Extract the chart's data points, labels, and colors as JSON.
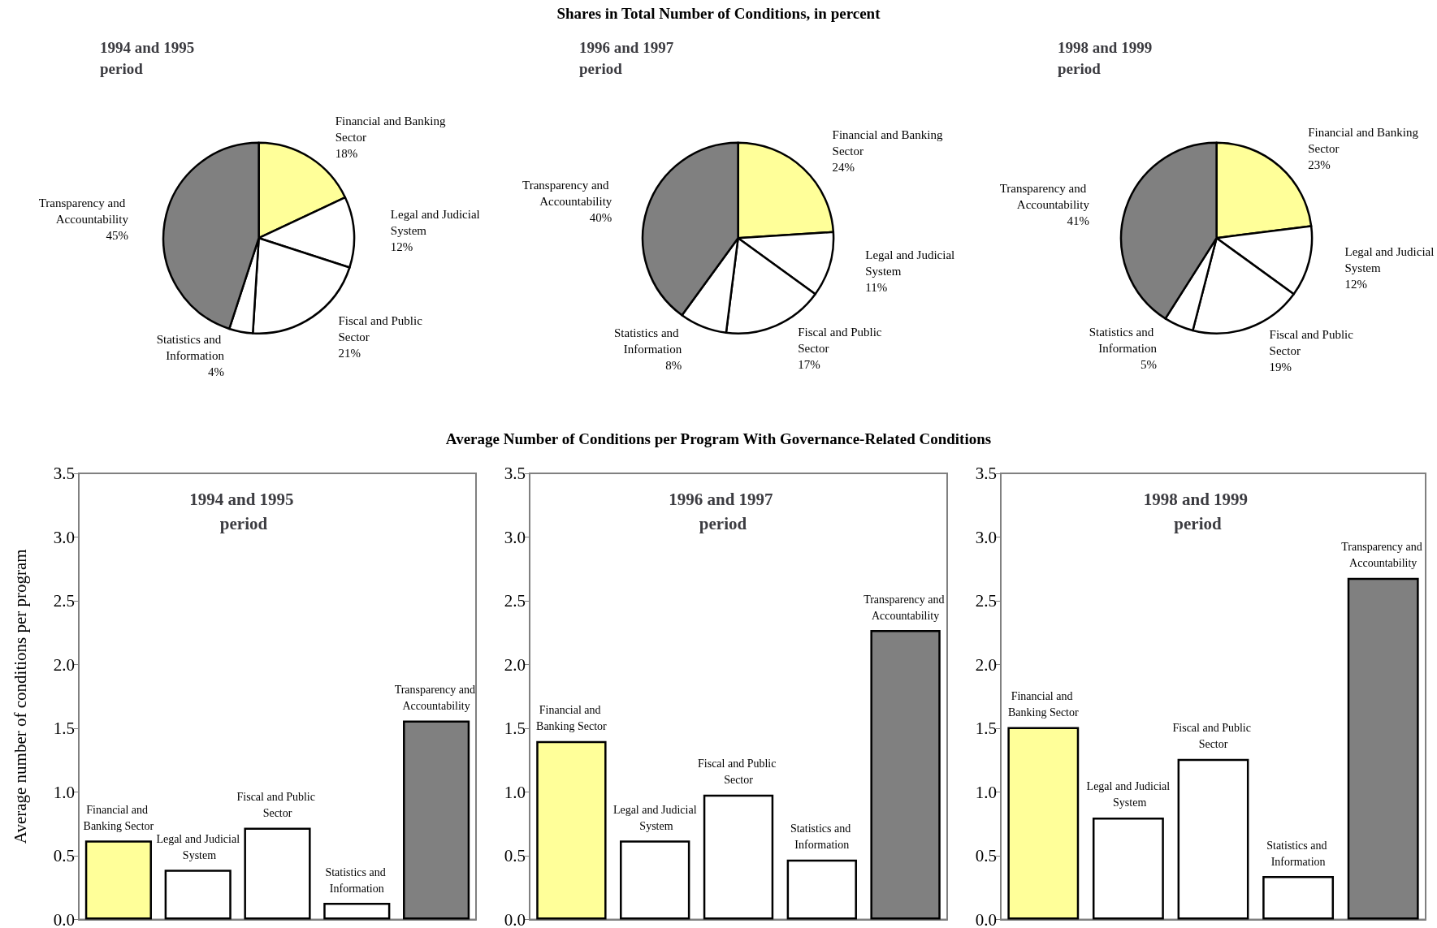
{
  "chart_data": [
    {
      "type": "pie",
      "title": "1994 and 1995 period",
      "annotations": [
        "Shares in Total Number of Conditions, in percent"
      ],
      "categories": [
        "Financial and Banking Sector",
        "Legal and Judicial System",
        "Fiscal and Public Sector",
        "Statistics and Information",
        "Transparency and Accountability"
      ],
      "values": [
        18,
        12,
        21,
        4,
        45
      ],
      "value_labels": [
        "18%",
        "12%",
        "21%",
        "4%",
        "45%"
      ],
      "colors": [
        "#ffff99",
        "#ffffff",
        "#ffffff",
        "#ffffff",
        "#808080"
      ],
      "legend": false
    },
    {
      "type": "pie",
      "title": "1996 and 1997 period",
      "categories": [
        "Financial and Banking Sector",
        "Legal and Judicial System",
        "Fiscal and Public Sector",
        "Statistics and Information",
        "Transparency and Accountability"
      ],
      "values": [
        24,
        11,
        17,
        8,
        40
      ],
      "value_labels": [
        "24%",
        "11%",
        "17%",
        "8%",
        "40%"
      ],
      "colors": [
        "#ffff99",
        "#ffffff",
        "#ffffff",
        "#ffffff",
        "#808080"
      ],
      "legend": false
    },
    {
      "type": "pie",
      "title": "1998 and 1999 period",
      "categories": [
        "Financial and Banking Sector",
        "Legal and Judicial System",
        "Fiscal and Public Sector",
        "Statistics and Information",
        "Transparency and Accountability"
      ],
      "values": [
        23,
        12,
        19,
        5,
        41
      ],
      "value_labels": [
        "23%",
        "12%",
        "19%",
        "5%",
        "41%"
      ],
      "colors": [
        "#ffff99",
        "#ffffff",
        "#ffffff",
        "#ffffff",
        "#808080"
      ],
      "legend": false
    },
    {
      "type": "bar",
      "title": "1994 and 1995 period",
      "annotations": [
        "Average Number of Conditions per Program With Governance-Related Conditions"
      ],
      "ylabel": "Average number of conditions per program",
      "categories": [
        "Financial and Banking Sector",
        "Legal and Judicial System",
        "Fiscal and Public Sector",
        "Statistics and Information",
        "Transparency and Accountability"
      ],
      "values": [
        0.62,
        0.39,
        0.72,
        0.13,
        1.56
      ],
      "colors": [
        "#ffff99",
        "#ffffff",
        "#ffffff",
        "#ffffff",
        "#808080"
      ],
      "ylim": [
        0,
        3.5
      ],
      "yticks": [
        {
          "value": 0,
          "label": "0.0"
        },
        {
          "value": 0.5,
          "label": "0.5"
        },
        {
          "value": 1,
          "label": "1.0"
        },
        {
          "value": 1.5,
          "label": "1.5"
        },
        {
          "value": 2,
          "label": "2.0"
        },
        {
          "value": 2.5,
          "label": "2.5"
        },
        {
          "value": 3,
          "label": "3.0"
        },
        {
          "value": 3.5,
          "label": "3.5"
        }
      ],
      "legend": false
    },
    {
      "type": "bar",
      "title": "1996 and 1997 period",
      "categories": [
        "Financial and Banking Sector",
        "Legal and Judicial System",
        "Fiscal and Public Sector",
        "Statistics and Information",
        "Transparency and Accountability"
      ],
      "values": [
        1.4,
        0.62,
        0.98,
        0.47,
        2.27
      ],
      "colors": [
        "#ffff99",
        "#ffffff",
        "#ffffff",
        "#ffffff",
        "#808080"
      ],
      "ylim": [
        0,
        3.5
      ],
      "yticks": [
        {
          "value": 0,
          "label": "0.0"
        },
        {
          "value": 0.5,
          "label": "0.5"
        },
        {
          "value": 1,
          "label": "1.0"
        },
        {
          "value": 1.5,
          "label": "1.5"
        },
        {
          "value": 2,
          "label": "2.0"
        },
        {
          "value": 2.5,
          "label": "2.5"
        },
        {
          "value": 3,
          "label": "3.0"
        },
        {
          "value": 3.5,
          "label": "3.5"
        }
      ],
      "legend": false
    },
    {
      "type": "bar",
      "title": "1998 and 1999 period",
      "categories": [
        "Financial and Banking Sector",
        "Legal and Judicial System",
        "Fiscal and Public Sector",
        "Statistics and Information",
        "Transparency and Accountability"
      ],
      "values": [
        1.51,
        0.8,
        1.26,
        0.34,
        2.68
      ],
      "colors": [
        "#ffff99",
        "#ffffff",
        "#ffffff",
        "#ffffff",
        "#808080"
      ],
      "ylim": [
        0,
        3.5
      ],
      "yticks": [
        {
          "value": 0,
          "label": "0.0"
        },
        {
          "value": 0.5,
          "label": "0.5"
        },
        {
          "value": 1,
          "label": "1.0"
        },
        {
          "value": 1.5,
          "label": "1.5"
        },
        {
          "value": 2,
          "label": "2.0"
        },
        {
          "value": 2.5,
          "label": "2.5"
        },
        {
          "value": 3,
          "label": "3.0"
        },
        {
          "value": 3.5,
          "label": "3.5"
        }
      ],
      "legend": false
    }
  ]
}
